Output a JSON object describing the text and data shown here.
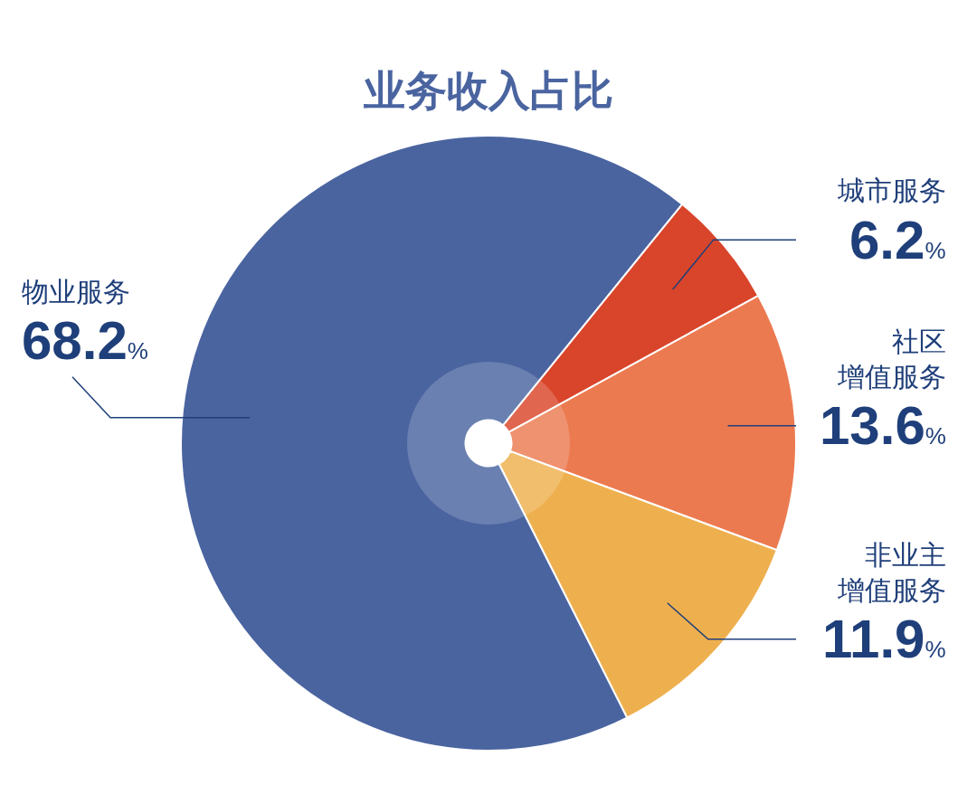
{
  "chart_data": {
    "type": "donut",
    "title": "业务收入占比",
    "categories": [
      "城市服务",
      "社区增值服务",
      "非业主增值服务",
      "物业服务"
    ],
    "values": [
      6.2,
      13.6,
      11.9,
      68.2
    ],
    "colors": [
      "#d9452a",
      "#ec7a50",
      "#eeb04e",
      "#4a64a0"
    ],
    "value_labels": [
      "6.2%",
      "13.6%",
      "11.9%",
      "68.2%"
    ],
    "legend": false
  }
}
